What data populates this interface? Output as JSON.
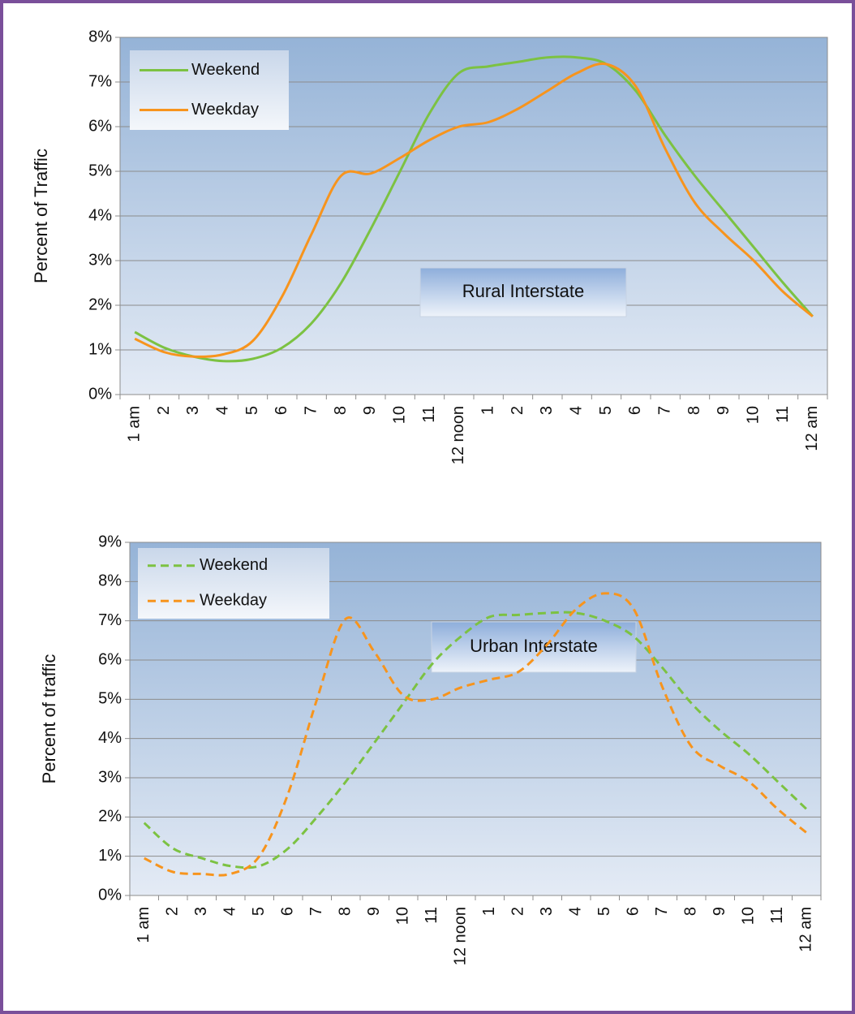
{
  "chart_data": [
    {
      "type": "line",
      "annotation": "Rural Interstate",
      "y_label": "Percent of Traffic",
      "categories": [
        "1 am",
        "2",
        "3",
        "4",
        "5",
        "6",
        "7",
        "8",
        "9",
        "10",
        "11",
        "12 noon",
        "1",
        "2",
        "3",
        "4",
        "5",
        "6",
        "7",
        "8",
        "9",
        "10",
        "11",
        "12 am"
      ],
      "series": [
        {
          "name": "Weekend",
          "color": "#7cc242",
          "values": [
            1.4,
            1.05,
            0.85,
            0.75,
            0.8,
            1.05,
            1.6,
            2.5,
            3.7,
            5.0,
            6.3,
            7.2,
            7.35,
            7.45,
            7.55,
            7.55,
            7.4,
            6.8,
            5.8,
            4.9,
            4.1,
            3.3,
            2.5,
            1.75
          ]
        },
        {
          "name": "Weekday",
          "color": "#f7941d",
          "values": [
            1.25,
            0.95,
            0.85,
            0.9,
            1.2,
            2.2,
            3.6,
            4.9,
            4.95,
            5.3,
            5.7,
            6.0,
            6.1,
            6.4,
            6.8,
            7.2,
            7.4,
            6.9,
            5.5,
            4.3,
            3.6,
            3.0,
            2.3,
            1.75
          ]
        }
      ],
      "ylim": [
        0,
        8
      ],
      "yticks": [
        {
          "value": 0,
          "label": "0%"
        },
        {
          "value": 1,
          "label": "1%"
        },
        {
          "value": 2,
          "label": "2%"
        },
        {
          "value": 3,
          "label": "3%"
        },
        {
          "value": 4,
          "label": "4%"
        },
        {
          "value": 5,
          "label": "5%"
        },
        {
          "value": 6,
          "label": "6%"
        },
        {
          "value": 7,
          "label": "7%"
        },
        {
          "value": 8,
          "label": "8%"
        }
      ],
      "grid": true,
      "legend": "upper left",
      "dashed": false
    },
    {
      "type": "line",
      "annotation": "Urban Interstate",
      "y_label": "Percent of traffic",
      "categories": [
        "1 am",
        "2",
        "3",
        "4",
        "5",
        "6",
        "7",
        "8",
        "9",
        "10",
        "11",
        "12 noon",
        "1",
        "2",
        "3",
        "4",
        "5",
        "6",
        "7",
        "8",
        "9",
        "10",
        "11",
        "12 am"
      ],
      "series": [
        {
          "name": "Weekend",
          "color": "#7cc242",
          "values": [
            1.85,
            1.2,
            0.95,
            0.75,
            0.75,
            1.2,
            2.0,
            2.9,
            3.9,
            4.9,
            5.9,
            6.6,
            7.1,
            7.15,
            7.2,
            7.2,
            7.0,
            6.6,
            5.8,
            4.9,
            4.2,
            3.6,
            2.9,
            2.2
          ]
        },
        {
          "name": "Weekday",
          "color": "#f7941d",
          "values": [
            0.95,
            0.6,
            0.55,
            0.55,
            1.0,
            2.6,
            5.0,
            7.05,
            6.2,
            5.1,
            5.0,
            5.3,
            5.5,
            5.7,
            6.4,
            7.3,
            7.7,
            7.3,
            5.3,
            3.8,
            3.3,
            2.9,
            2.2,
            1.6
          ]
        }
      ],
      "ylim": [
        0,
        9
      ],
      "yticks": [
        {
          "value": 0,
          "label": "0%"
        },
        {
          "value": 1,
          "label": "1%"
        },
        {
          "value": 2,
          "label": "2%"
        },
        {
          "value": 3,
          "label": "3%"
        },
        {
          "value": 4,
          "label": "4%"
        },
        {
          "value": 5,
          "label": "5%"
        },
        {
          "value": 6,
          "label": "6%"
        },
        {
          "value": 7,
          "label": "7%"
        },
        {
          "value": 8,
          "label": "8%"
        },
        {
          "value": 9,
          "label": "9%"
        }
      ],
      "grid": true,
      "legend": "upper left",
      "dashed": true
    }
  ]
}
